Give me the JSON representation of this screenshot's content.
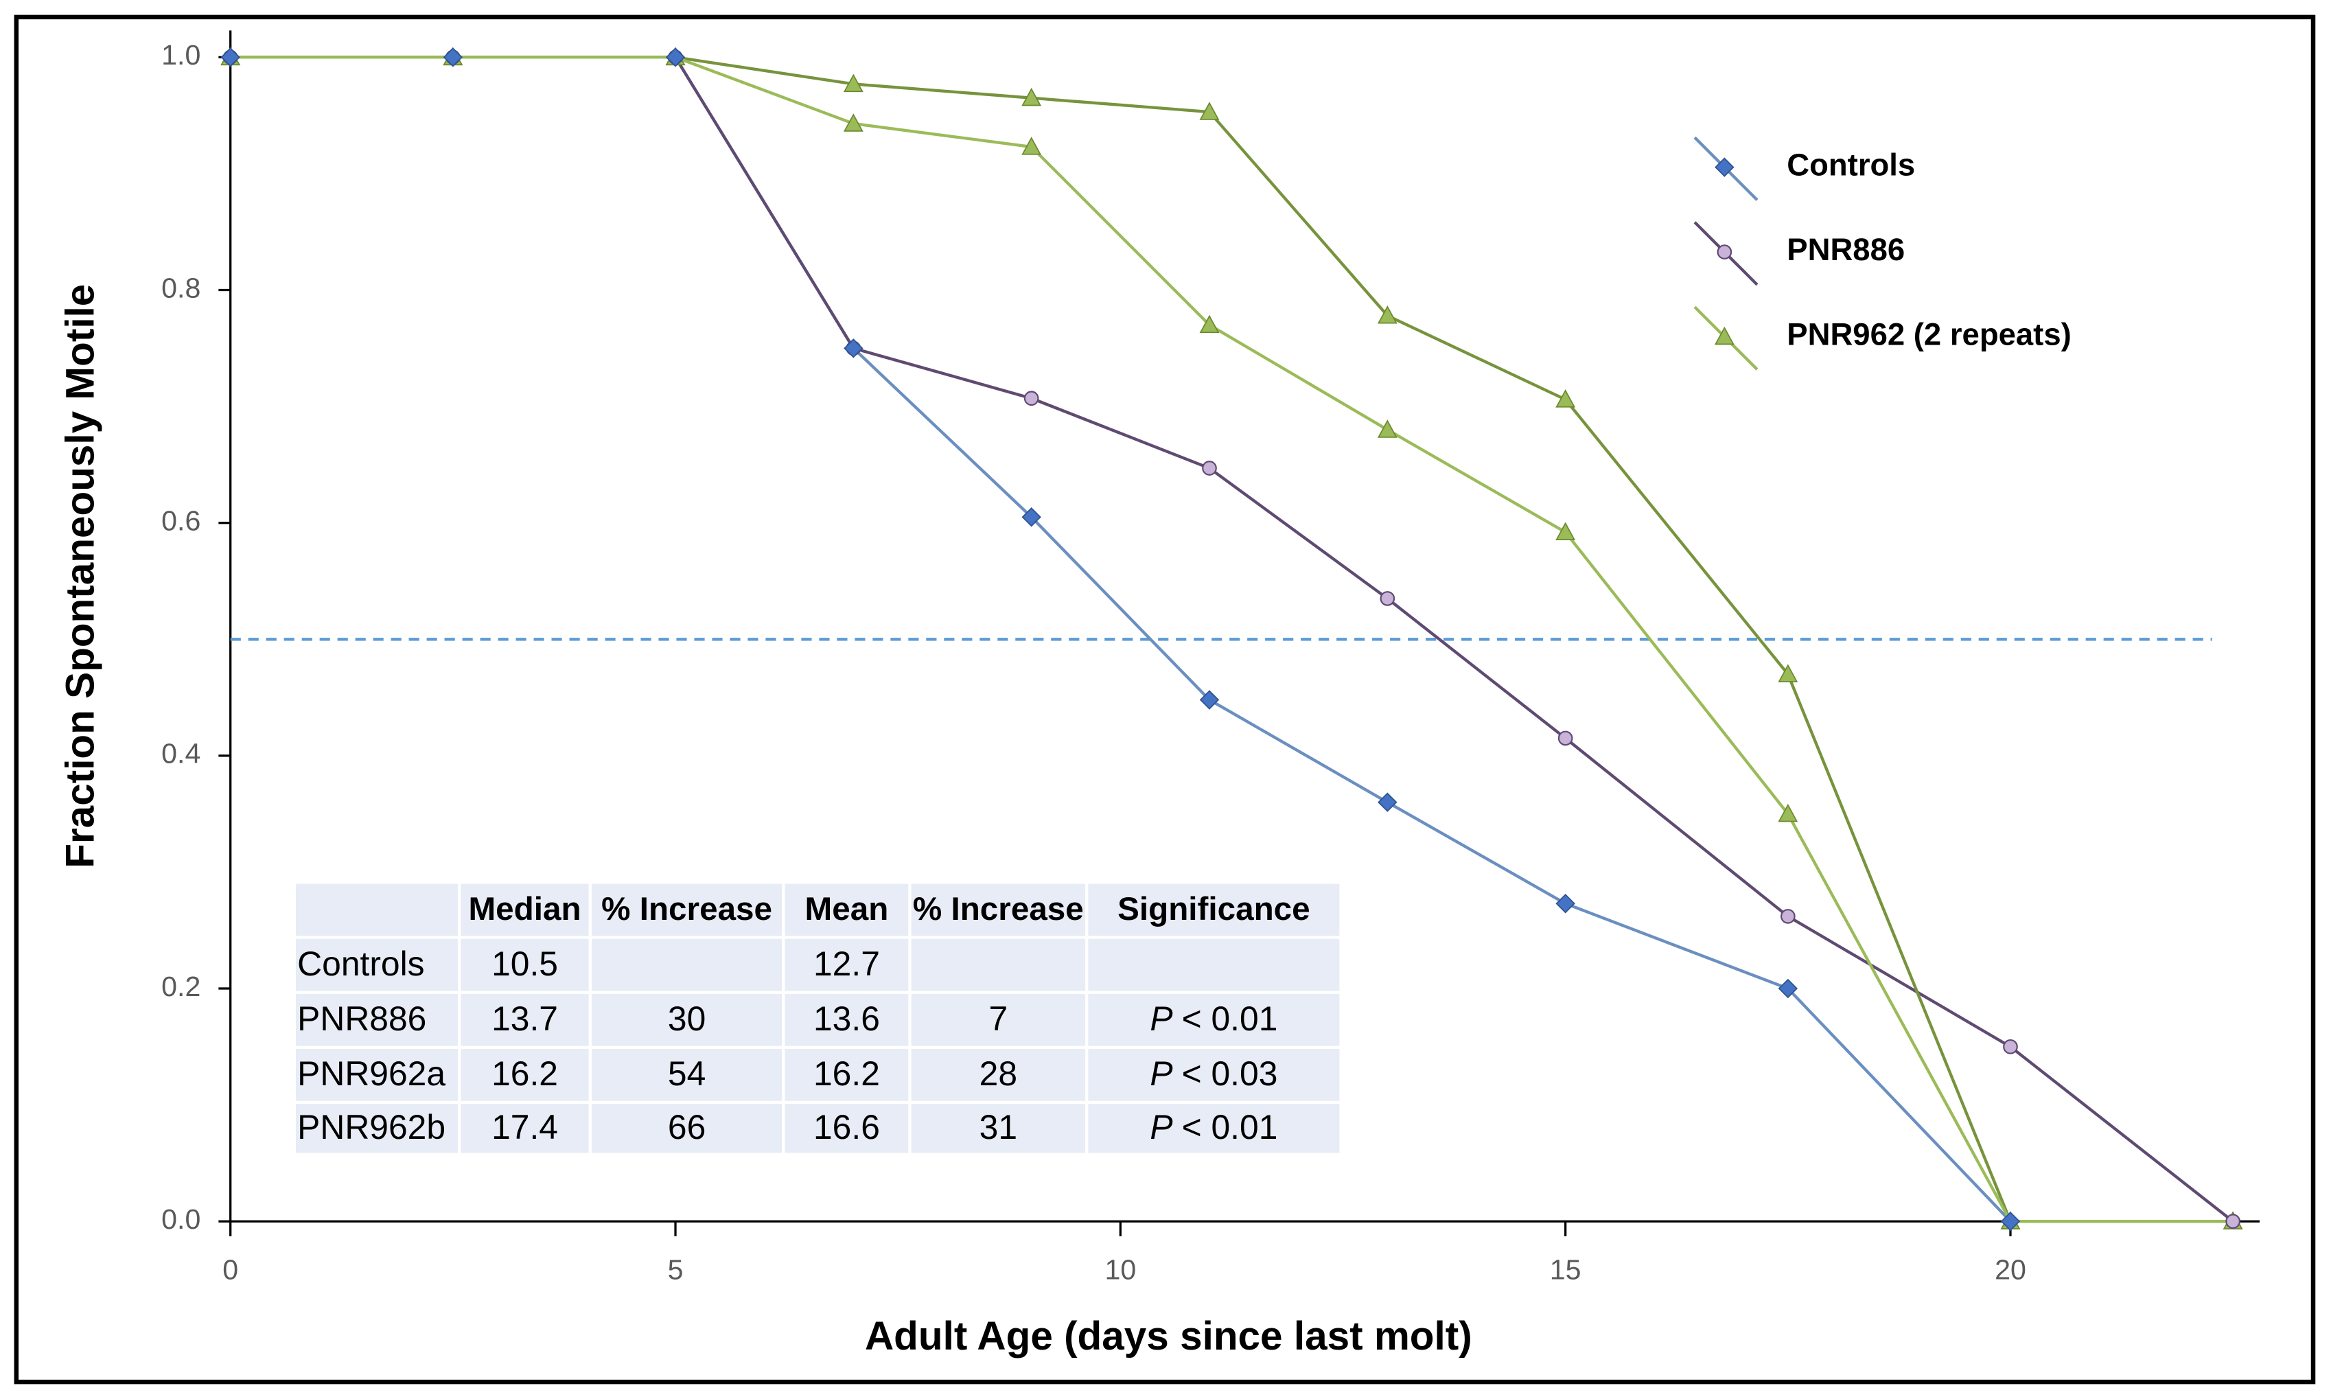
{
  "chart_data": {
    "type": "line",
    "x_label": "Adult Age (days since last molt)",
    "y_label": "Fraction Spontaneously Motile",
    "x": [
      0,
      2.5,
      5,
      7,
      9,
      11,
      13,
      15,
      17.5,
      20,
      22.5
    ],
    "series": [
      {
        "name": "Controls",
        "color": "#4472c4",
        "line_color": "#6a8fc0",
        "marker": "diamond",
        "values": [
          1.0,
          1.0,
          1.0,
          0.75,
          0.605,
          0.448,
          0.36,
          0.273,
          0.2,
          0.0,
          null
        ]
      },
      {
        "name": "PNR886",
        "color": "#c9b3d9",
        "line_color": "#5f4a72",
        "marker": "circle",
        "values": [
          1.0,
          1.0,
          1.0,
          0.75,
          0.707,
          0.647,
          0.535,
          0.415,
          0.262,
          0.15,
          0.0
        ]
      },
      {
        "color": "#9bbb59",
        "line_color": "#77933c",
        "marker": "triangle",
        "values": [
          1.0,
          1.0,
          1.0,
          0.977,
          0.965,
          0.953,
          0.778,
          0.706,
          0.47,
          0.0,
          0.0
        ]
      },
      {
        "name": "PNR962 (2 repeats)",
        "color": "#9bbb59",
        "line_color": "#9bbb59",
        "marker": "triangle",
        "values": [
          1.0,
          1.0,
          1.0,
          0.943,
          0.923,
          0.77,
          0.68,
          0.592,
          0.35,
          0.0,
          0.0
        ]
      }
    ],
    "xlim": [
      0,
      22.8
    ],
    "ylim": [
      0,
      1
    ],
    "xticks": [
      0,
      5,
      10,
      15,
      20
    ],
    "yticks": [
      {
        "value": 0,
        "label": "0.0"
      },
      {
        "value": 0.2,
        "label": "0.2"
      },
      {
        "value": 0.4,
        "label": "0.4"
      },
      {
        "value": 0.6,
        "label": "0.6"
      },
      {
        "value": 0.8,
        "label": "0.8"
      },
      {
        "value": 1,
        "label": "1.0"
      }
    ],
    "reference_line": {
      "y": 0.5,
      "color": "#5b9bd5"
    },
    "legend": "upper right",
    "table": {
      "header": [
        "Median",
        "% Increase",
        "Mean",
        "% Increase",
        "Significance"
      ],
      "rows": [
        [
          "Controls",
          10.5,
          null,
          12.7,
          null,
          null
        ],
        [
          "PNR886",
          13.7,
          30,
          13.6,
          7,
          {
            "symbol": "P",
            "text": "< 0.01"
          }
        ],
        [
          "PNR962a",
          16.2,
          54,
          16.2,
          28,
          {
            "symbol": "P",
            "text": "< 0.03"
          }
        ],
        [
          "PNR962b",
          17.4,
          66,
          16.6,
          31,
          {
            "symbol": "P",
            "text": "< 0.01"
          }
        ]
      ]
    }
  }
}
